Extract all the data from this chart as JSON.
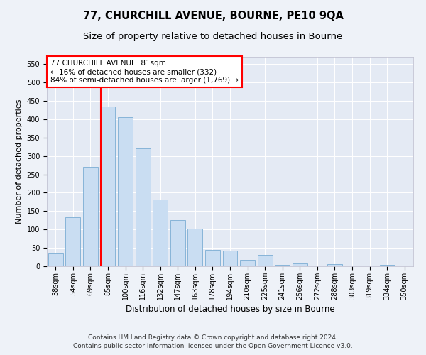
{
  "title": "77, CHURCHILL AVENUE, BOURNE, PE10 9QA",
  "subtitle": "Size of property relative to detached houses in Bourne",
  "xlabel": "Distribution of detached houses by size in Bourne",
  "ylabel": "Number of detached properties",
  "categories": [
    "38sqm",
    "54sqm",
    "69sqm",
    "85sqm",
    "100sqm",
    "116sqm",
    "132sqm",
    "147sqm",
    "163sqm",
    "178sqm",
    "194sqm",
    "210sqm",
    "225sqm",
    "241sqm",
    "256sqm",
    "272sqm",
    "288sqm",
    "303sqm",
    "319sqm",
    "334sqm",
    "350sqm"
  ],
  "values": [
    35,
    133,
    270,
    435,
    405,
    320,
    182,
    125,
    102,
    45,
    43,
    17,
    30,
    4,
    7,
    2,
    5,
    2,
    1,
    4,
    2
  ],
  "bar_color": "#c9ddf2",
  "bar_edge_color": "#7aadd4",
  "vline_x_index": 3,
  "vline_color": "red",
  "annotation_line1": "77 CHURCHILL AVENUE: 81sqm",
  "annotation_line2": "← 16% of detached houses are smaller (332)",
  "annotation_line3": "84% of semi-detached houses are larger (1,769) →",
  "annotation_box_color": "white",
  "annotation_box_edge_color": "red",
  "ylim": [
    0,
    570
  ],
  "yticks": [
    0,
    50,
    100,
    150,
    200,
    250,
    300,
    350,
    400,
    450,
    500,
    550
  ],
  "footer_line1": "Contains HM Land Registry data © Crown copyright and database right 2024.",
  "footer_line2": "Contains public sector information licensed under the Open Government Licence v3.0.",
  "background_color": "#eef2f8",
  "plot_background_color": "#e4eaf4",
  "grid_color": "white",
  "title_fontsize": 10.5,
  "subtitle_fontsize": 9.5,
  "tick_fontsize": 7,
  "ylabel_fontsize": 8,
  "xlabel_fontsize": 8.5,
  "annotation_fontsize": 7.5,
  "footer_fontsize": 6.5
}
